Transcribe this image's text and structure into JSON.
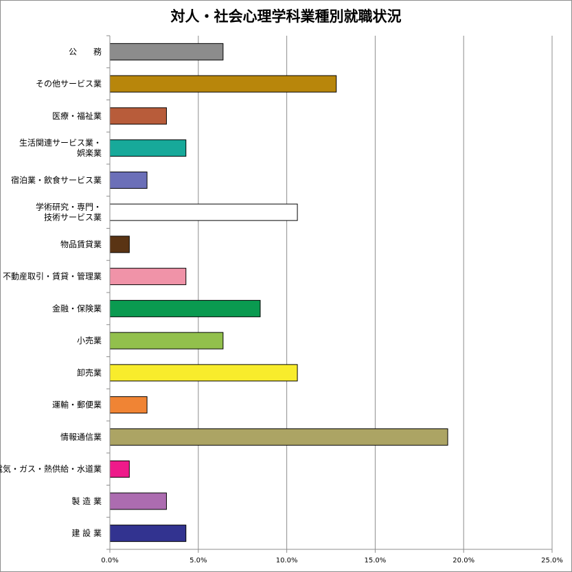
{
  "chart_data": {
    "type": "bar",
    "orientation": "horizontal",
    "title": "対人・社会心理学科業種別就職状況",
    "categories": [
      [
        "公　　務"
      ],
      [
        "その他サービス業"
      ],
      [
        "医療・福祉業"
      ],
      [
        "生活関連サービス業・",
        "娯楽業"
      ],
      [
        "宿泊業・飲食サービス業"
      ],
      [
        "学術研究・専門・",
        "技術サービス業"
      ],
      [
        "物品賃貸業"
      ],
      [
        "不動産取引・賃貸・管理業"
      ],
      [
        "金融・保険業"
      ],
      [
        "小売業"
      ],
      [
        "卸売業"
      ],
      [
        "運輸・郵便業"
      ],
      [
        "情報通信業"
      ],
      [
        "電気・ガス・熱供給・水道業"
      ],
      [
        "製 造 業"
      ],
      [
        "建 設 業"
      ]
    ],
    "values": [
      6.4,
      12.8,
      3.2,
      4.3,
      2.1,
      10.6,
      1.1,
      4.3,
      8.5,
      6.4,
      10.6,
      2.1,
      19.1,
      1.1,
      3.2,
      4.3
    ],
    "colors": [
      "#8c8c8c",
      "#b8860b",
      "#b85c3a",
      "#17a99a",
      "#6b6fb8",
      "#ffffff",
      "#5a3414",
      "#f093a8",
      "#0a9a50",
      "#92c04c",
      "#f8ec2c",
      "#f08434",
      "#aca464",
      "#ee1a8a",
      "#ac6cb0",
      "#323390"
    ],
    "xlim": [
      0,
      25
    ],
    "xticks": [
      0,
      5,
      10,
      15,
      20,
      25
    ],
    "xtick_labels": [
      "0.0%",
      "5.0%",
      "10.0%",
      "15.0%",
      "20.0%",
      "25.0%"
    ],
    "grid": true,
    "legend": "none"
  }
}
